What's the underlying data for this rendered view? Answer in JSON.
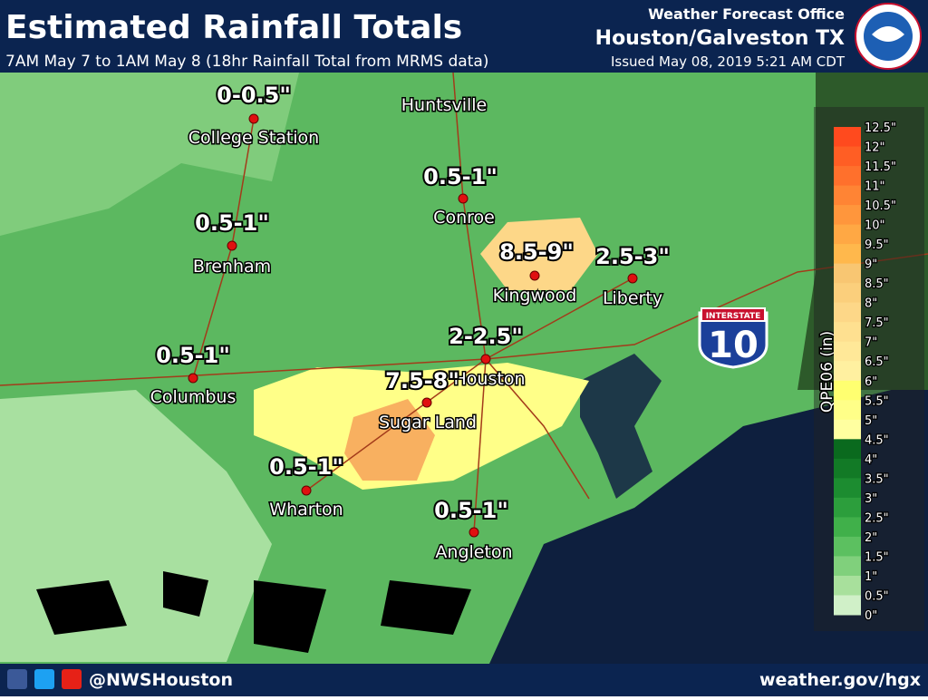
{
  "header": {
    "title": "Estimated Rainfall Totals",
    "subtitle": "7AM May 7 to 1AM May 8 (18hr Rainfall Total from MRMS data)",
    "office": "Weather Forecast Office",
    "office_name": "Houston/Galveston TX",
    "issued": "Issued May 08, 2019 5:21 AM CDT"
  },
  "cities": [
    {
      "name": "College Station",
      "amount": "0-0.5\""
    },
    {
      "name": "Huntsville"
    },
    {
      "name": "Conroe",
      "amount": "0.5-1\""
    },
    {
      "name": "Brenham",
      "amount": "0.5-1\""
    },
    {
      "name": "Kingwood",
      "amount": "8.5-9\""
    },
    {
      "name": "Liberty",
      "amount": "2.5-3\""
    },
    {
      "name": "Houston",
      "amount": "2-2.5\""
    },
    {
      "name": "Columbus",
      "amount": "0.5-1\""
    },
    {
      "name": "Sugar Land",
      "amount": "7.5-8\""
    },
    {
      "name": "Wharton",
      "amount": "0.5-1\""
    },
    {
      "name": "Angleton",
      "amount": "0.5-1\""
    }
  ],
  "interstate": {
    "label": "INTERSTATE",
    "number": "10"
  },
  "legend": {
    "title": "QPE06 (in)",
    "labels": [
      "12.5\"",
      "12\"",
      "11.5\"",
      "11\"",
      "10.5\"",
      "10\"",
      "9.5\"",
      "9\"",
      "8.5\"",
      "8\"",
      "7.5\"",
      "7\"",
      "6.5\"",
      "6\"",
      "5.5\"",
      "5\"",
      "4.5\"",
      "4\"",
      "3.5\"",
      "3\"",
      "2.5\"",
      "2\"",
      "1.5\"",
      "1\"",
      "0.5\"",
      "0\""
    ],
    "colors": [
      "#ff4a1e",
      "#ff5e24",
      "#ff702c",
      "#ff8434",
      "#ff963c",
      "#ffa844",
      "#ffb84c",
      "#f8c672",
      "#fbcf7c",
      "#fdd788",
      "#fee090",
      "#ffe898",
      "#fff0a0",
      "#ffff70",
      "#ffff88",
      "#ffffa0",
      "#0a6a1e",
      "#127a26",
      "#1c8c30",
      "#2c9e3c",
      "#40b04a",
      "#5cc060",
      "#80d07c",
      "#a8e09c",
      "#d0f0c8"
    ]
  },
  "footer": {
    "handle": "@NWSHouston",
    "url": "weather.gov/hgx"
  }
}
